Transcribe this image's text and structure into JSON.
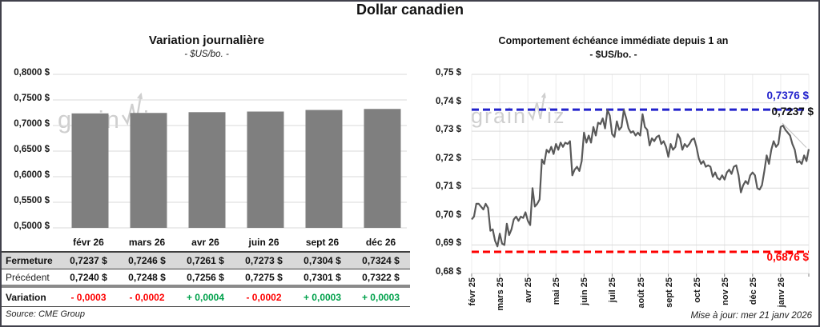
{
  "page": {
    "title": "Dollar canadien"
  },
  "watermark": {
    "pre": "grain",
    "post": "iz"
  },
  "left_panel": {
    "title": "Variation journalière",
    "subtitle": "- $US/bo. -",
    "source": "Source: CME Group",
    "table": {
      "columns": [
        "févr 26",
        "mars 26",
        "avr 26",
        "juin 26",
        "sept 26",
        "déc 26"
      ],
      "rows": [
        {
          "label": "Fermeture",
          "style": "ferm",
          "values": [
            "0,7237 $",
            "0,7246 $",
            "0,7261 $",
            "0,7273 $",
            "0,7304 $",
            "0,7324 $"
          ]
        },
        {
          "label": "Précédent",
          "style": "prec",
          "values": [
            "0,7240 $",
            "0,7248 $",
            "0,7256 $",
            "0,7275 $",
            "0,7301 $",
            "0,7322 $"
          ]
        },
        {
          "label": "Variation",
          "style": "vari",
          "values": [
            "- 0,0003",
            "- 0,0002",
            "+ 0,0004",
            "- 0,0002",
            "+ 0,0003",
            "+ 0,0003"
          ],
          "signs": [
            "neg",
            "neg",
            "pos",
            "neg",
            "pos",
            "pos"
          ]
        }
      ]
    }
  },
  "right_panel": {
    "title": "Comportement échéance immédiate depuis 1 an",
    "subtitle": "- $US/bo. -",
    "high_label": "0,7376 $",
    "last_label": "0,7237 $",
    "low_label": "0,6876 $",
    "update_note": "Mise à jour: mer 21 janv 2026"
  },
  "colors": {
    "bar": "#7f7f7f",
    "line": "#595959",
    "grid": "#d9d9d9",
    "grid_v": "#ececec",
    "blue": "#2222cc",
    "red": "#fe0000",
    "green": "#00a14b",
    "pointer": "#bfbfbf",
    "tick": "#808080"
  },
  "chart_data": [
    {
      "type": "bar",
      "title": "Variation journalière",
      "subtitle": "- $US/bo. -",
      "categories": [
        "févr 26",
        "mars 26",
        "avr 26",
        "juin 26",
        "sept 26",
        "déc 26"
      ],
      "values": [
        0.7237,
        0.7246,
        0.7261,
        0.7273,
        0.7304,
        0.7324
      ],
      "ylim": [
        0.5,
        0.8
      ],
      "yticks": [
        {
          "v": 0.8,
          "label": "0,8000 $"
        },
        {
          "v": 0.75,
          "label": "0,7500 $"
        },
        {
          "v": 0.7,
          "label": "0,7000 $"
        },
        {
          "v": 0.65,
          "label": "0,6500 $"
        },
        {
          "v": 0.6,
          "label": "0,6000 $"
        },
        {
          "v": 0.55,
          "label": "0,5500 $"
        },
        {
          "v": 0.5,
          "label": "0,5000 $"
        }
      ],
      "grid": true,
      "legend": false
    },
    {
      "type": "line",
      "title": "Comportement échéance immédiate depuis 1 an",
      "subtitle": "- $US/bo. -",
      "x_labels": [
        "févr 25",
        "mars 25",
        "avr 25",
        "mai 25",
        "juin 25",
        "juil 25",
        "août 25",
        "sept 25",
        "oct 25",
        "nov 25",
        "déc 25",
        "janv 26"
      ],
      "ylim": [
        0.68,
        0.75
      ],
      "yticks": [
        {
          "v": 0.75,
          "label": "0,75 $"
        },
        {
          "v": 0.74,
          "label": "0,74 $"
        },
        {
          "v": 0.73,
          "label": "0,73 $"
        },
        {
          "v": 0.72,
          "label": "0,72 $"
        },
        {
          "v": 0.71,
          "label": "0,71 $"
        },
        {
          "v": 0.7,
          "label": "0,70 $"
        },
        {
          "v": 0.69,
          "label": "0,69 $"
        },
        {
          "v": 0.68,
          "label": "0,68 $"
        }
      ],
      "reference_lines": [
        {
          "value": 0.7376,
          "label": "0,7376 $",
          "color": "blue"
        },
        {
          "value": 0.6876,
          "label": "0,6876 $",
          "color": "red"
        }
      ],
      "last_value": 0.7237,
      "last_label": "0,7237 $",
      "grid": true,
      "legend": false,
      "values": [
        0.699,
        0.7,
        0.7045,
        0.7045,
        0.7035,
        0.7025,
        0.7045,
        0.703,
        0.695,
        0.6955,
        0.6915,
        0.6895,
        0.694,
        0.6905,
        0.69,
        0.6975,
        0.6935,
        0.6955,
        0.699,
        0.7,
        0.6985,
        0.7,
        0.6995,
        0.7015,
        0.6985,
        0.697,
        0.71,
        0.7035,
        0.7045,
        0.706,
        0.72,
        0.7185,
        0.7235,
        0.7225,
        0.7245,
        0.722,
        0.7255,
        0.7235,
        0.726,
        0.7245,
        0.726,
        0.7255,
        0.7265,
        0.7145,
        0.7165,
        0.7175,
        0.716,
        0.7195,
        0.7295,
        0.726,
        0.7285,
        0.726,
        0.7315,
        0.7285,
        0.733,
        0.7325,
        0.7345,
        0.731,
        0.7375,
        0.7355,
        0.729,
        0.728,
        0.7335,
        0.7305,
        0.7315,
        0.7375,
        0.7345,
        0.731,
        0.7295,
        0.73,
        0.7285,
        0.7295,
        0.7285,
        0.736,
        0.7315,
        0.7305,
        0.725,
        0.7275,
        0.7265,
        0.728,
        0.7285,
        0.7255,
        0.7265,
        0.7245,
        0.721,
        0.7255,
        0.7235,
        0.7245,
        0.729,
        0.7275,
        0.7235,
        0.7255,
        0.7245,
        0.7255,
        0.727,
        0.7275,
        0.7245,
        0.7205,
        0.7185,
        0.7195,
        0.7175,
        0.718,
        0.7175,
        0.714,
        0.7155,
        0.7135,
        0.713,
        0.7145,
        0.713,
        0.7155,
        0.7165,
        0.715,
        0.7175,
        0.718,
        0.7145,
        0.7085,
        0.711,
        0.7125,
        0.7115,
        0.7145,
        0.7155,
        0.7145,
        0.71,
        0.7095,
        0.711,
        0.716,
        0.7215,
        0.7185,
        0.7235,
        0.7265,
        0.7245,
        0.7255,
        0.7315,
        0.732,
        0.7305,
        0.7295,
        0.7285,
        0.7255,
        0.7235,
        0.719,
        0.7195,
        0.7185,
        0.7215,
        0.7195,
        0.7237
      ]
    }
  ]
}
